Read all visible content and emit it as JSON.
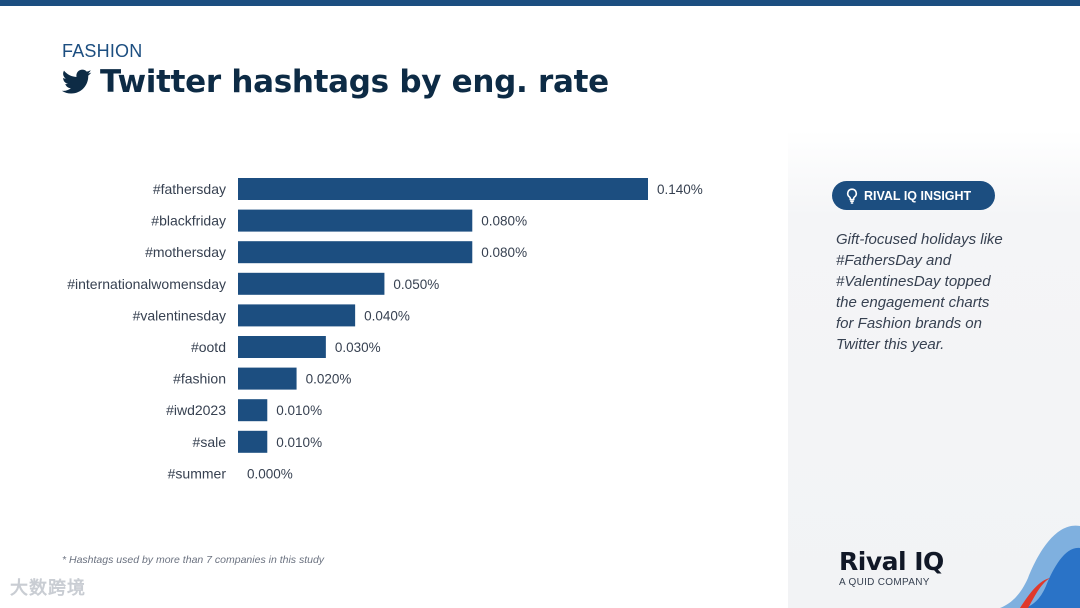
{
  "header": {
    "category": "FASHION",
    "title": "Twitter hashtags by eng. rate",
    "icon": "twitter-bird-icon"
  },
  "chart_data": {
    "type": "bar",
    "orientation": "horizontal",
    "categories": [
      "#fathersday",
      "#blackfriday",
      "#mothersday",
      "#internationalwomensday",
      "#valentinesday",
      "#ootd",
      "#fashion",
      "#iwd2023",
      "#sale",
      "#summer"
    ],
    "values": [
      0.14,
      0.08,
      0.08,
      0.05,
      0.04,
      0.03,
      0.02,
      0.01,
      0.01,
      0.0
    ],
    "value_labels": [
      "0.140%",
      "0.080%",
      "0.080%",
      "0.050%",
      "0.040%",
      "0.030%",
      "0.020%",
      "0.010%",
      "0.010%",
      "0.000%"
    ],
    "unit": "%",
    "xlim": [
      0,
      0.16
    ],
    "grid": false,
    "bar_color": "#1c4e80"
  },
  "footnote": "* Hashtags used by more than 7 companies in this study",
  "insight": {
    "badge": "RIVAL IQ INSIGHT",
    "badge_icon": "lightbulb-icon",
    "text": "Gift-focused holidays like #FathersDay and #ValentinesDay topped the engagement charts for Fashion brands on Twitter this year."
  },
  "brand": {
    "name": "Rival IQ",
    "tagline": "A QUID COMPANY"
  },
  "watermark": "大数跨境",
  "colors": {
    "accent": "#1c4e80",
    "title": "#0d2b45"
  }
}
